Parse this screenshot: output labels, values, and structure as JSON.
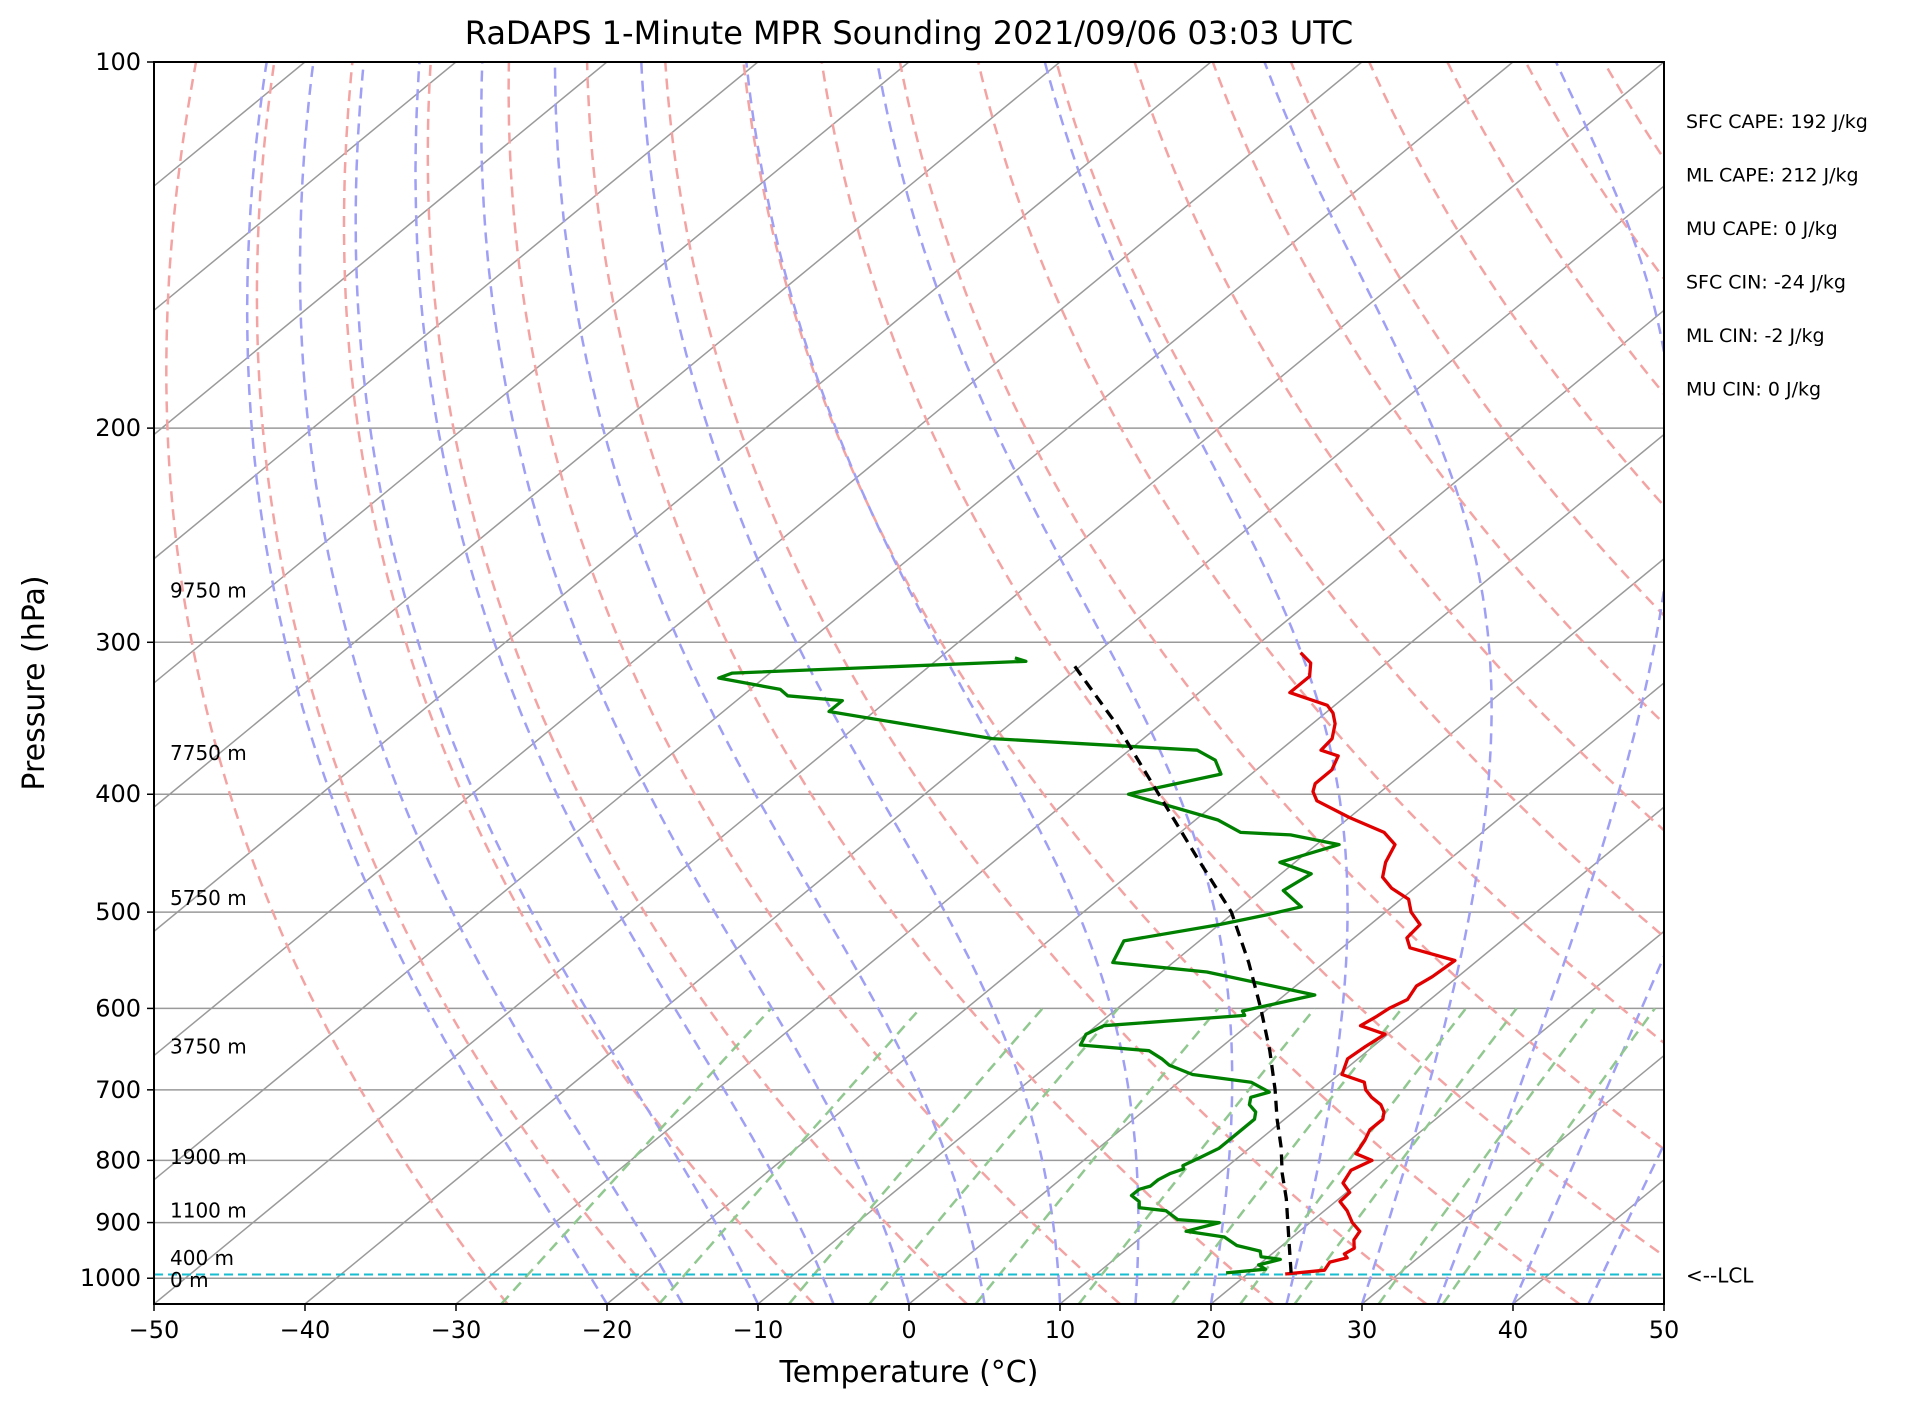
{
  "chart_data": {
    "type": "line",
    "subtype": "skew-T log-P",
    "title": "RaDAPS 1-Minute MPR Sounding 2021/09/06 03:03 UTC",
    "xlabel": "Temperature (°C)",
    "ylabel": "Pressure (hPa)",
    "xlim": [
      -50,
      50
    ],
    "ylim": [
      1050,
      100
    ],
    "y_scale": "log",
    "x_ticks": [
      "−50",
      "−40",
      "−30",
      "−20",
      "−10",
      "0",
      "10",
      "20",
      "30",
      "40",
      "50"
    ],
    "y_ticks": [
      "100",
      "200",
      "300",
      "400",
      "500",
      "600",
      "700",
      "800",
      "900",
      "1000"
    ],
    "grid": true,
    "colors": {
      "temperature": "#e00000",
      "dewpoint": "#008000",
      "parcel": "#000000",
      "dry_adiabats": "#f4a3a3",
      "moist_adiabats": "#9f9ff5",
      "mixing_ratio": "#90c890",
      "isotherms": "#9a9a9a",
      "lcl_line": "#17becf"
    },
    "series": [
      {
        "style": "solid",
        "color": "red",
        "points": [
          [
            22.5,
            992
          ],
          [
            24.8,
            985
          ],
          [
            24.5,
            970
          ],
          [
            25.3,
            962
          ],
          [
            24.8,
            955
          ],
          [
            25.0,
            945
          ],
          [
            24.3,
            930
          ],
          [
            24.0,
            915
          ],
          [
            22.8,
            900
          ],
          [
            21.5,
            880
          ],
          [
            20.3,
            865
          ],
          [
            20.2,
            850
          ],
          [
            19.0,
            835
          ],
          [
            18.5,
            815
          ],
          [
            19.1,
            800
          ],
          [
            17.5,
            790
          ],
          [
            17.0,
            770
          ],
          [
            16.5,
            755
          ],
          [
            16.5,
            740
          ],
          [
            16.0,
            730
          ],
          [
            15.2,
            720
          ],
          [
            14.0,
            710
          ],
          [
            13.0,
            700
          ],
          [
            12.3,
            690
          ],
          [
            10.2,
            680
          ],
          [
            9.3,
            660
          ],
          [
            9.5,
            645
          ],
          [
            9.8,
            630
          ],
          [
            7.5,
            620
          ],
          [
            7.8,
            610
          ],
          [
            8.0,
            600
          ],
          [
            8.5,
            590
          ],
          [
            8.0,
            575
          ],
          [
            8.3,
            565
          ],
          [
            8.5,
            548
          ],
          [
            4.5,
            535
          ],
          [
            3.5,
            525
          ],
          [
            3.3,
            512
          ],
          [
            1.7,
            500
          ],
          [
            0.5,
            488
          ],
          [
            -1.5,
            478
          ],
          [
            -3.0,
            468
          ],
          [
            -4.0,
            455
          ],
          [
            -4.8,
            440
          ],
          [
            -6.5,
            430
          ],
          [
            -10.0,
            418
          ],
          [
            -13.5,
            405
          ],
          [
            -14.5,
            398
          ],
          [
            -15.0,
            392
          ],
          [
            -15.0,
            382
          ],
          [
            -15.7,
            372
          ],
          [
            -17.3,
            368
          ],
          [
            -17.5,
            360
          ],
          [
            -18.5,
            350
          ],
          [
            -19.5,
            343
          ],
          [
            -20.5,
            338
          ],
          [
            -24.0,
            330
          ],
          [
            -24.0,
            320
          ],
          [
            -25.0,
            312
          ],
          [
            -26.5,
            306
          ]
        ]
      },
      {
        "style": "solid",
        "color": "green",
        "points": [
          [
            18.5,
            990
          ],
          [
            20.8,
            983
          ],
          [
            20.0,
            975
          ],
          [
            21.0,
            965
          ],
          [
            19.5,
            960
          ],
          [
            19.0,
            950
          ],
          [
            17.0,
            940
          ],
          [
            15.5,
            925
          ],
          [
            12.5,
            915
          ],
          [
            14.0,
            900
          ],
          [
            11.0,
            895
          ],
          [
            9.5,
            880
          ],
          [
            7.5,
            875
          ],
          [
            7.0,
            865
          ],
          [
            6.0,
            855
          ],
          [
            6.0,
            845
          ],
          [
            6.5,
            840
          ],
          [
            6.5,
            830
          ],
          [
            6.8,
            820
          ],
          [
            7.3,
            813
          ],
          [
            7.0,
            808
          ],
          [
            7.5,
            795
          ],
          [
            8.0,
            782
          ],
          [
            8.0,
            770
          ],
          [
            8.0,
            755
          ],
          [
            8.0,
            740
          ],
          [
            7.5,
            730
          ],
          [
            6.5,
            720
          ],
          [
            6.0,
            710
          ],
          [
            6.8,
            703
          ],
          [
            4.8,
            690
          ],
          [
            0.3,
            680
          ],
          [
            -2.0,
            668
          ],
          [
            -3.0,
            660
          ],
          [
            -4.5,
            650
          ],
          [
            -9.5,
            643
          ],
          [
            -10.0,
            630
          ],
          [
            -9.5,
            620
          ],
          [
            -1.0,
            608
          ],
          [
            -1.5,
            603
          ],
          [
            2.0,
            585
          ],
          [
            -7.0,
            560
          ],
          [
            -14.0,
            550
          ],
          [
            -15.0,
            528
          ],
          [
            -10.0,
            512
          ],
          [
            -7.5,
            502
          ],
          [
            -6.0,
            495
          ],
          [
            -8.5,
            480
          ],
          [
            -8.0,
            465
          ],
          [
            -11.0,
            455
          ],
          [
            -8.5,
            440
          ],
          [
            -12.5,
            432
          ],
          [
            -16.0,
            430
          ],
          [
            -18.5,
            420
          ],
          [
            -26.5,
            400
          ],
          [
            -26.0,
            398
          ],
          [
            -22.0,
            385
          ],
          [
            -23.5,
            375
          ],
          [
            -25.5,
            368
          ],
          [
            -40.0,
            360
          ],
          [
            -53.0,
            342
          ],
          [
            -53.0,
            335
          ],
          [
            -57.0,
            332
          ],
          [
            -58.0,
            328
          ],
          [
            -63.0,
            321
          ],
          [
            -62.5,
            318
          ],
          [
            -44.0,
            311
          ],
          [
            -45.0,
            309
          ]
        ]
      },
      {
        "style": "dashed",
        "color": "black",
        "points": [
          [
            22.8,
            990
          ],
          [
            20.0,
            930
          ],
          [
            16.5,
            860
          ],
          [
            14.2,
            820
          ],
          [
            12.0,
            780
          ],
          [
            9.5,
            740
          ],
          [
            7.0,
            700
          ],
          [
            3.5,
            650
          ],
          [
            -0.5,
            600
          ],
          [
            -5.0,
            550
          ],
          [
            -10.2,
            500
          ],
          [
            -17.0,
            450
          ],
          [
            -24.5,
            400
          ],
          [
            -33.0,
            350
          ],
          [
            -39.5,
            318
          ],
          [
            -41.0,
            311
          ]
        ]
      }
    ],
    "height_labels": [
      {
        "label": "9750 m",
        "p": 272
      },
      {
        "label": "7750 m",
        "p": 370
      },
      {
        "label": "5750 m",
        "p": 487
      },
      {
        "label": "3750 m",
        "p": 645
      },
      {
        "label": "1900 m",
        "p": 795
      },
      {
        "label": "1100 m",
        "p": 880
      },
      {
        "label": "400 m",
        "p": 962
      },
      {
        "label": "0 m",
        "p": 1003
      }
    ],
    "lcl": {
      "label": "<--LCL",
      "p": 993
    },
    "indices": [
      "SFC CAPE: 192 J/kg",
      "ML CAPE: 212 J/kg",
      "MU CAPE: 0 J/kg",
      "SFC CIN: -24 J/kg",
      "ML CIN: -2 J/kg",
      "MU CIN: 0 J/kg"
    ]
  }
}
